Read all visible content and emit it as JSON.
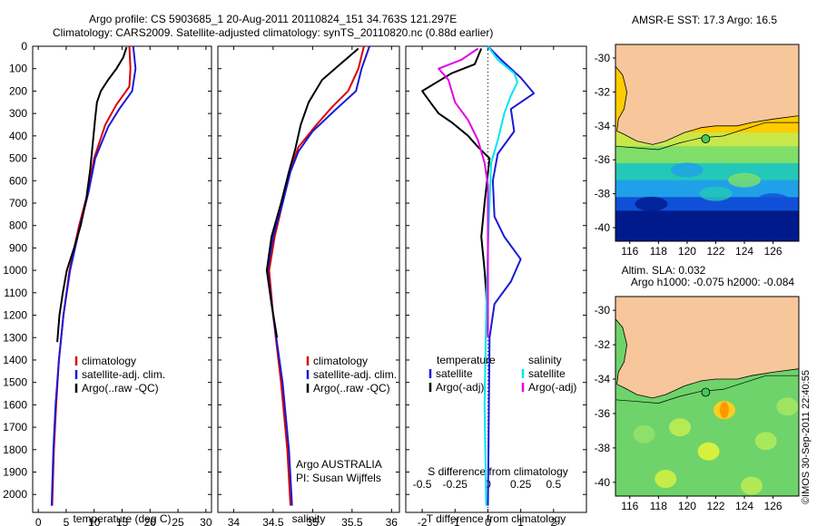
{
  "header": {
    "line1": "Argo profile: CS 5903685_1 20-Aug-2011 20110824_151 34.763S 121.297E",
    "line2": "Climatology: CARS2009. Satellite-adjusted climatology: synTS_20110820.nc (0.88d earlier)"
  },
  "colors": {
    "climatology": "#dd0000",
    "satellite": "#1a1ad8",
    "argo": "#000000",
    "sal_sat": "#00e6f0",
    "sal_argo": "#e600e6",
    "land": "#f7c79b"
  },
  "chart_data": [
    {
      "id": "temperature",
      "type": "line",
      "xlabel": "temperature (deg C)",
      "ylabel": "",
      "xlim": [
        -1,
        31
      ],
      "ylim": [
        2080,
        0
      ],
      "xticks": [
        "0",
        "5",
        "10",
        "15",
        "20",
        "25",
        "30"
      ],
      "yticks": [
        "0",
        "100",
        "200",
        "300",
        "400",
        "500",
        "600",
        "700",
        "800",
        "900",
        "1000",
        "1100",
        "1200",
        "1300",
        "1400",
        "1500",
        "1600",
        "1700",
        "1800",
        "1900",
        "2000"
      ],
      "legend": [
        "climatology",
        "satellite-adj. clim.",
        "Argo(..raw -QC)"
      ],
      "series": [
        {
          "name": "climatology",
          "color_key": "climatology",
          "points": [
            [
              16.3,
              0
            ],
            [
              16.5,
              100
            ],
            [
              16.3,
              180
            ],
            [
              14,
              260
            ],
            [
              12,
              350
            ],
            [
              10,
              500
            ],
            [
              8.9,
              650
            ],
            [
              7.3,
              800
            ],
            [
              5.6,
              1000
            ],
            [
              4.5,
              1200
            ],
            [
              3.7,
              1400
            ],
            [
              3.2,
              1600
            ],
            [
              2.8,
              1800
            ],
            [
              2.5,
              2050
            ]
          ]
        },
        {
          "name": "satellite-adj. clim.",
          "color_key": "satellite",
          "points": [
            [
              17.0,
              0
            ],
            [
              17.4,
              100
            ],
            [
              16.8,
              200
            ],
            [
              14.5,
              280
            ],
            [
              12.5,
              360
            ],
            [
              10.2,
              500
            ],
            [
              9,
              650
            ],
            [
              7.5,
              800
            ],
            [
              5.7,
              1000
            ],
            [
              4.5,
              1200
            ],
            [
              3.7,
              1400
            ],
            [
              3.1,
              1600
            ],
            [
              2.7,
              1800
            ],
            [
              2.4,
              2050
            ]
          ]
        },
        {
          "name": "Argo(..raw -QC)",
          "color_key": "argo",
          "points": [
            [
              15.8,
              5
            ],
            [
              15.2,
              50
            ],
            [
              14,
              100
            ],
            [
              12.5,
              150
            ],
            [
              11.2,
              200
            ],
            [
              10.5,
              250
            ],
            [
              10.2,
              320
            ],
            [
              9.8,
              420
            ],
            [
              9.3,
              550
            ],
            [
              8.6,
              680
            ],
            [
              7.6,
              800
            ],
            [
              6.4,
              900
            ],
            [
              5.1,
              1000
            ],
            [
              4.4,
              1100
            ],
            [
              3.8,
              1200
            ],
            [
              3.4,
              1320
            ]
          ]
        }
      ]
    },
    {
      "id": "salinity",
      "type": "line",
      "xlabel": "salinity",
      "xlim": [
        33.8,
        36.1
      ],
      "ylim": [
        2080,
        0
      ],
      "xticks": [
        "34",
        "34.5",
        "35",
        "35.5",
        "36"
      ],
      "legend": [
        "climatology",
        "satellite-adj. clim.",
        "Argo(..raw -QC)"
      ],
      "series": [
        {
          "name": "climatology",
          "color_key": "climatology",
          "points": [
            [
              35.65,
              0
            ],
            [
              35.58,
              100
            ],
            [
              35.45,
              200
            ],
            [
              35.25,
              270
            ],
            [
              35.05,
              350
            ],
            [
              34.82,
              450
            ],
            [
              34.72,
              550
            ],
            [
              34.62,
              700
            ],
            [
              34.52,
              850
            ],
            [
              34.45,
              1000
            ],
            [
              34.5,
              1200
            ],
            [
              34.6,
              1500
            ],
            [
              34.68,
              1800
            ],
            [
              34.72,
              2050
            ]
          ]
        },
        {
          "name": "satellite-adj. clim.",
          "color_key": "satellite",
          "points": [
            [
              35.72,
              0
            ],
            [
              35.62,
              100
            ],
            [
              35.55,
              200
            ],
            [
              35.3,
              280
            ],
            [
              35.0,
              380
            ],
            [
              34.82,
              470
            ],
            [
              34.72,
              560
            ],
            [
              34.62,
              700
            ],
            [
              34.5,
              850
            ],
            [
              34.43,
              1000
            ],
            [
              34.5,
              1200
            ],
            [
              34.62,
              1500
            ],
            [
              34.7,
              1800
            ],
            [
              34.74,
              2050
            ]
          ]
        },
        {
          "name": "Argo(..raw -QC)",
          "color_key": "argo",
          "points": [
            [
              35.58,
              10
            ],
            [
              35.35,
              80
            ],
            [
              35.12,
              150
            ],
            [
              34.95,
              250
            ],
            [
              34.85,
              350
            ],
            [
              34.78,
              460
            ],
            [
              34.7,
              560
            ],
            [
              34.6,
              700
            ],
            [
              34.48,
              850
            ],
            [
              34.42,
              1000
            ],
            [
              34.48,
              1150
            ],
            [
              34.55,
              1300
            ]
          ]
        }
      ],
      "annotation": [
        "Argo AUSTRALIA",
        "PI: Susan Wijffels"
      ]
    },
    {
      "id": "difference",
      "type": "line",
      "xlabel": "T difference from climatology",
      "top_xlabel": "S difference from climatology",
      "xlim": [
        -2.5,
        3
      ],
      "ylim": [
        2080,
        0
      ],
      "xticks": [
        "-2",
        "-1",
        "0",
        "1",
        "2"
      ],
      "top_xticks": [
        "-0.5",
        "-0.25",
        "0",
        "0.25",
        "0.5"
      ],
      "legend_headers": [
        "temperature",
        "salinity"
      ],
      "legend_left": [
        "satellite",
        "Argo(-adj)"
      ],
      "legend_right": [
        "satellite",
        "Argo(-adj)"
      ],
      "series": [
        {
          "name": "T satellite",
          "color_key": "satellite",
          "points": [
            [
              0,
              0
            ],
            [
              0.4,
              60
            ],
            [
              1.0,
              140
            ],
            [
              1.4,
              210
            ],
            [
              0.7,
              280
            ],
            [
              0.8,
              380
            ],
            [
              0.3,
              480
            ],
            [
              0.15,
              600
            ],
            [
              0.2,
              760
            ],
            [
              0.5,
              850
            ],
            [
              1.0,
              950
            ],
            [
              0.7,
              1050
            ],
            [
              0.2,
              1150
            ],
            [
              0.05,
              1300
            ],
            [
              0,
              2050
            ]
          ]
        },
        {
          "name": "T Argo(-adj)",
          "color_key": "argo",
          "points": [
            [
              -0.2,
              10
            ],
            [
              -0.4,
              80
            ],
            [
              -1.1,
              120
            ],
            [
              -2.0,
              200
            ],
            [
              -1.7,
              260
            ],
            [
              -1.5,
              300
            ],
            [
              -1.1,
              340
            ],
            [
              -0.6,
              400
            ],
            [
              -0.3,
              450
            ],
            [
              0.05,
              500
            ],
            [
              -0.1,
              700
            ],
            [
              -0.2,
              850
            ],
            [
              -0.1,
              1000
            ],
            [
              -0.05,
              1100
            ],
            [
              0,
              1300
            ]
          ]
        },
        {
          "name": "S satellite",
          "color_key": "sal_sat",
          "points": [
            [
              0,
              0
            ],
            [
              0.3,
              60
            ],
            [
              0.8,
              120
            ],
            [
              0.9,
              160
            ],
            [
              0.7,
              220
            ],
            [
              0.5,
              300
            ],
            [
              0.3,
              420
            ],
            [
              0.1,
              520
            ],
            [
              0.05,
              700
            ],
            [
              0.0,
              900
            ],
            [
              -0.05,
              1200
            ],
            [
              -0.1,
              1600
            ],
            [
              -0.05,
              2050
            ]
          ]
        },
        {
          "name": "S Argo(-adj)",
          "color_key": "sal_argo",
          "points": [
            [
              -0.3,
              10
            ],
            [
              -0.8,
              60
            ],
            [
              -1.5,
              100
            ],
            [
              -1.2,
              150
            ],
            [
              -1.0,
              250
            ],
            [
              -0.6,
              330
            ],
            [
              -0.3,
              420
            ],
            [
              -0.1,
              520
            ],
            [
              0,
              620
            ],
            [
              0,
              1300
            ]
          ]
        }
      ]
    }
  ],
  "maps": [
    {
      "title_lines": [
        "AMSR-E SST: 17.3 Argo: 16.5"
      ],
      "yticks": [
        "-30",
        "-32",
        "-34",
        "-36",
        "-38",
        "-40"
      ],
      "xticks": [
        "116",
        "118",
        "120",
        "122",
        "124",
        "126"
      ]
    },
    {
      "title_lines": [
        "Altim. SLA: 0.032",
        "Argo h1000: -0.075 h2000: -0.084"
      ],
      "yticks": [
        "-30",
        "-32",
        "-34",
        "-36",
        "-38",
        "-40"
      ],
      "xticks": [
        "116",
        "118",
        "120",
        "122",
        "124",
        "126"
      ]
    }
  ],
  "watermark": "©IMOS 30-Sep-2011 22:40:55"
}
